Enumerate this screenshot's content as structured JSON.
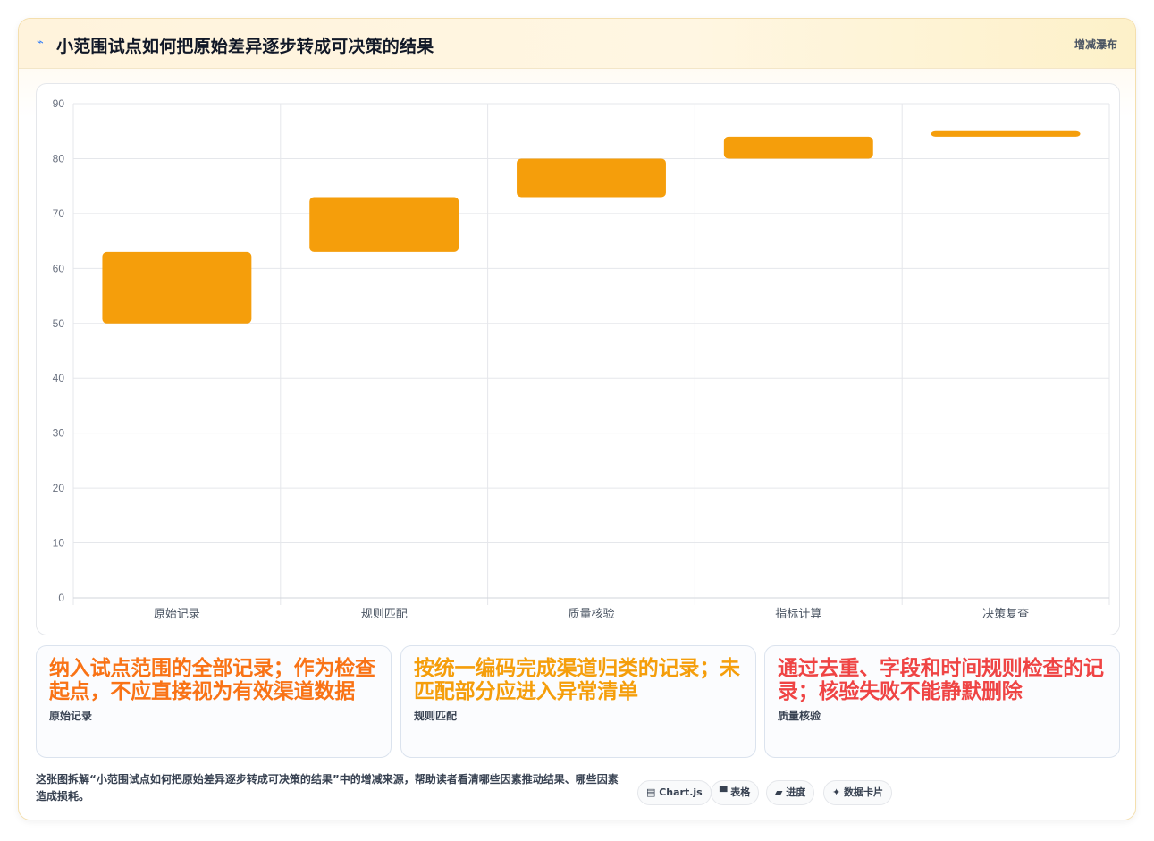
{
  "header": {
    "icon": "chart-icon",
    "title": "小范围试点如何把原始差异逐步转成可决策的结果",
    "tag": "增减瀑布"
  },
  "colors": {
    "bar": "#f59e0b",
    "grid": "#e5e7eb",
    "orange": "#f97316",
    "amber": "#f59e0b",
    "red": "#ef4444"
  },
  "chart_data": {
    "type": "bar",
    "subtype": "waterfall",
    "categories": [
      "原始记录",
      "规则匹配",
      "质量核验",
      "指标计算",
      "决策复查"
    ],
    "series": [
      {
        "ranges": [
          [
            50,
            63
          ],
          [
            63,
            73
          ],
          [
            73,
            80
          ],
          [
            80,
            84
          ],
          [
            84,
            85
          ]
        ]
      }
    ],
    "ylim": [
      0,
      90
    ],
    "yticks": [
      0,
      10,
      20,
      30,
      40,
      50,
      60,
      70,
      80,
      90
    ],
    "grid": true,
    "title": "",
    "xlabel": "",
    "ylabel": ""
  },
  "cards": [
    {
      "text": "纳入试点范围的全部记录；作为检查起点，不应直接视为有效渠道数据",
      "label": "原始记录",
      "color": "#f97316"
    },
    {
      "text": "按统一编码完成渠道归类的记录；未匹配部分应进入异常清单",
      "label": "规则匹配",
      "color": "#f59e0b"
    },
    {
      "text": "通过去重、字段和时间规则检查的记录；核验失败不能静默删除",
      "label": "质量核验",
      "color": "#ef4444"
    }
  ],
  "footer": {
    "description": "这张图拆解“小范围试点如何把原始差异逐步转成可决策的结果”中的增减来源，帮助读者看清哪些因素推动结果、哪些因素造成损耗。"
  },
  "chips": [
    {
      "icon": "chart-js-icon",
      "label": "▤ Chart.js"
    },
    {
      "icon": "table-icon",
      "label": "▀ 表格"
    },
    {
      "icon": "progress-icon",
      "label": "▰ 进度"
    },
    {
      "icon": "data-card-icon",
      "label": "✦ 数据卡片"
    }
  ]
}
